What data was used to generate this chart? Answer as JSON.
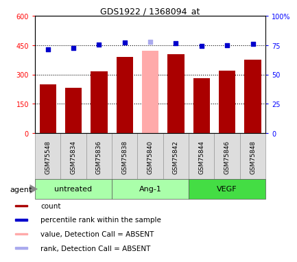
{
  "title": "GDS1922 / 1368094_at",
  "samples": [
    "GSM75548",
    "GSM75834",
    "GSM75836",
    "GSM75838",
    "GSM75840",
    "GSM75842",
    "GSM75844",
    "GSM75846",
    "GSM75848"
  ],
  "bar_values": [
    248,
    232,
    315,
    390,
    420,
    405,
    282,
    318,
    375
  ],
  "bar_absent": [
    false,
    false,
    false,
    false,
    true,
    false,
    false,
    false,
    false
  ],
  "rank_values": [
    430,
    435,
    452,
    462,
    468,
    460,
    445,
    448,
    458
  ],
  "rank_absent": [
    false,
    false,
    false,
    false,
    true,
    false,
    false,
    false,
    false
  ],
  "bar_color_normal": "#aa0000",
  "bar_color_absent": "#ffaaaa",
  "rank_color_normal": "#0000cc",
  "rank_color_absent": "#aaaaee",
  "ylim_left": [
    0,
    600
  ],
  "ylim_right": [
    0,
    100
  ],
  "yticks_left": [
    0,
    150,
    300,
    450,
    600
  ],
  "yticks_right": [
    0,
    25,
    50,
    75,
    100
  ],
  "ytick_labels_left": [
    "0",
    "150",
    "300",
    "450",
    "600"
  ],
  "ytick_labels_right": [
    "0",
    "25",
    "50",
    "75",
    "100%"
  ],
  "hlines": [
    150,
    300,
    450
  ],
  "bar_width": 0.65,
  "agent_label": "agent",
  "groups": [
    {
      "label": "untreated",
      "start": 0,
      "end": 3,
      "color": "#aaffaa"
    },
    {
      "label": "Ang-1",
      "start": 3,
      "end": 6,
      "color": "#aaffaa"
    },
    {
      "label": "VEGF",
      "start": 6,
      "end": 9,
      "color": "#44dd44"
    }
  ],
  "legend_items": [
    {
      "label": "count",
      "color": "#aa0000"
    },
    {
      "label": "percentile rank within the sample",
      "color": "#0000cc"
    },
    {
      "label": "value, Detection Call = ABSENT",
      "color": "#ffaaaa"
    },
    {
      "label": "rank, Detection Call = ABSENT",
      "color": "#aaaaee"
    }
  ]
}
